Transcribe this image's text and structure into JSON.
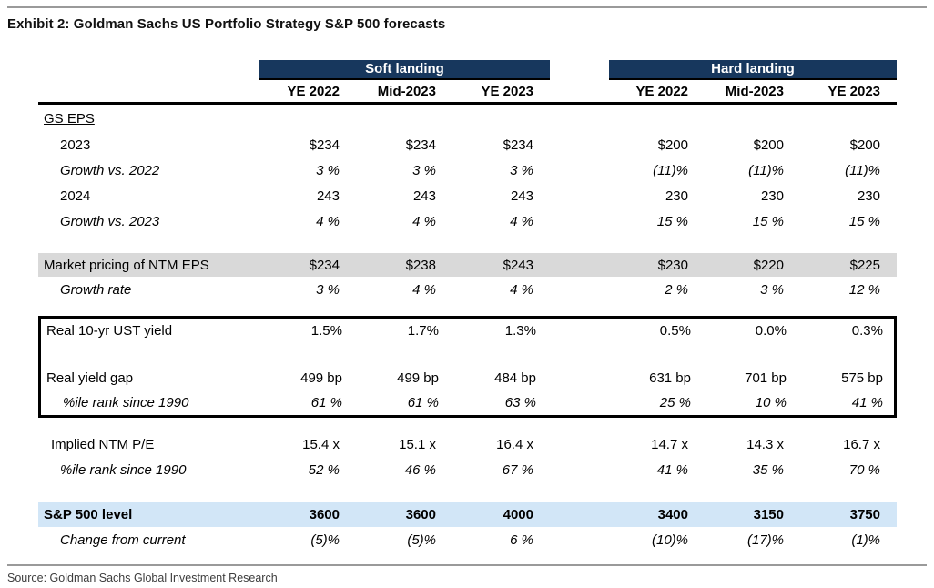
{
  "title": "Exhibit 2: Goldman Sachs US Portfolio Strategy S&P 500 forecasts",
  "source": "Source: Goldman Sachs Global Investment Research",
  "colors": {
    "band": "#17375D",
    "gray_row": "#D9D9D9",
    "blue_row": "#D2E6F7"
  },
  "table": {
    "scenarios": [
      {
        "label": "Soft landing"
      },
      {
        "label": "Hard landing"
      }
    ],
    "columns": [
      "YE 2022",
      "Mid-2023",
      "YE 2023"
    ],
    "groups": [
      {
        "box": false,
        "rows": [
          {
            "label": "GS EPS",
            "style": "section",
            "values": [
              "",
              "",
              "",
              "",
              "",
              ""
            ]
          },
          {
            "label": "2023",
            "style": "sub",
            "values": [
              "$234",
              "$234",
              "$234",
              "$200",
              "$200",
              "$200"
            ]
          },
          {
            "label": "Growth vs. 2022",
            "style": "subitalic",
            "values": [
              "3 %",
              "3 %",
              "3 %",
              "(11)%",
              "(11)%",
              "(11)%"
            ]
          },
          {
            "label": "2024",
            "style": "sub",
            "values": [
              "243",
              "243",
              "243",
              "230",
              "230",
              "230"
            ]
          },
          {
            "label": "Growth vs. 2023",
            "style": "subitalic",
            "values": [
              "4 %",
              "4 %",
              "4 %",
              "15 %",
              "15 %",
              "15 %"
            ]
          },
          {
            "style": "spacer"
          }
        ]
      },
      {
        "box": false,
        "rows": [
          {
            "label": "Market pricing of NTM EPS",
            "style": "gray",
            "values": [
              "$234",
              "$238",
              "$243",
              "$230",
              "$220",
              "$225"
            ]
          },
          {
            "label": "Growth rate",
            "style": "subitalic",
            "values": [
              "3 %",
              "4 %",
              "4 %",
              "2 %",
              "3 %",
              "12 %"
            ]
          },
          {
            "style": "spacer_small"
          }
        ]
      },
      {
        "box": true,
        "rows": [
          {
            "label": "Real 10-yr UST yield",
            "style": "plain",
            "values": [
              "1.5%",
              "1.7%",
              "1.3%",
              "0.5%",
              "0.0%",
              "0.3%"
            ]
          },
          {
            "style": "spacer"
          },
          {
            "label": "Real yield gap",
            "style": "plain",
            "values": [
              "499 bp",
              "499 bp",
              "484 bp",
              "631 bp",
              "701 bp",
              "575 bp"
            ]
          },
          {
            "label": "%ile rank since 1990",
            "style": "subitalic",
            "values": [
              "61 %",
              "61 %",
              "63 %",
              "25 %",
              "10 %",
              "41 %"
            ]
          }
        ]
      },
      {
        "box": false,
        "rows": [
          {
            "style": "spacer_small"
          },
          {
            "label": "Implied NTM P/E",
            "style": "plain2",
            "values": [
              "15.4 x",
              "15.1 x",
              "16.4 x",
              "14.7 x",
              "14.3 x",
              "16.7 x"
            ]
          },
          {
            "label": "%ile rank since 1990",
            "style": "subitalic",
            "values": [
              "52 %",
              "46 %",
              "67 %",
              "41 %",
              "35 %",
              "70 %"
            ]
          },
          {
            "style": "spacer"
          }
        ]
      },
      {
        "box": false,
        "rows": [
          {
            "label": "S&P 500 level",
            "style": "blue",
            "values": [
              "3600",
              "3600",
              "4000",
              "3400",
              "3150",
              "3750"
            ]
          },
          {
            "label": "Change from current",
            "style": "subitalic",
            "values": [
              "(5)%",
              "(5)%",
              "6 %",
              "(10)%",
              "(17)%",
              "(1)%"
            ]
          }
        ]
      }
    ]
  }
}
